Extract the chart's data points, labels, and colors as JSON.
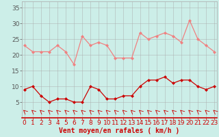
{
  "hours": [
    0,
    1,
    2,
    3,
    4,
    5,
    6,
    7,
    8,
    9,
    10,
    11,
    12,
    13,
    14,
    15,
    16,
    17,
    18,
    19,
    20,
    21,
    22,
    23
  ],
  "rafales": [
    23,
    21,
    21,
    21,
    23,
    21,
    17,
    26,
    23,
    24,
    23,
    19,
    19,
    19,
    27,
    25,
    26,
    27,
    26,
    24,
    31,
    25,
    23,
    21
  ],
  "moyen": [
    9,
    10,
    7,
    5,
    6,
    6,
    5,
    5,
    10,
    9,
    6,
    6,
    7,
    7,
    10,
    12,
    12,
    13,
    11,
    12,
    12,
    10,
    9,
    10
  ],
  "background_color": "#cceee8",
  "grid_color": "#aaaaaa",
  "line_color_rafales": "#f08080",
  "line_color_moyen": "#cc0000",
  "arrow_color": "#cc0000",
  "xlabel": "Vent moyen/en rafales ( km/h )",
  "xlabel_fontsize": 7,
  "yticks": [
    5,
    10,
    15,
    20,
    25,
    30,
    35
  ],
  "ylim": [
    0,
    37
  ],
  "xlim": [
    -0.3,
    23.3
  ],
  "tick_fontsize": 6.5
}
